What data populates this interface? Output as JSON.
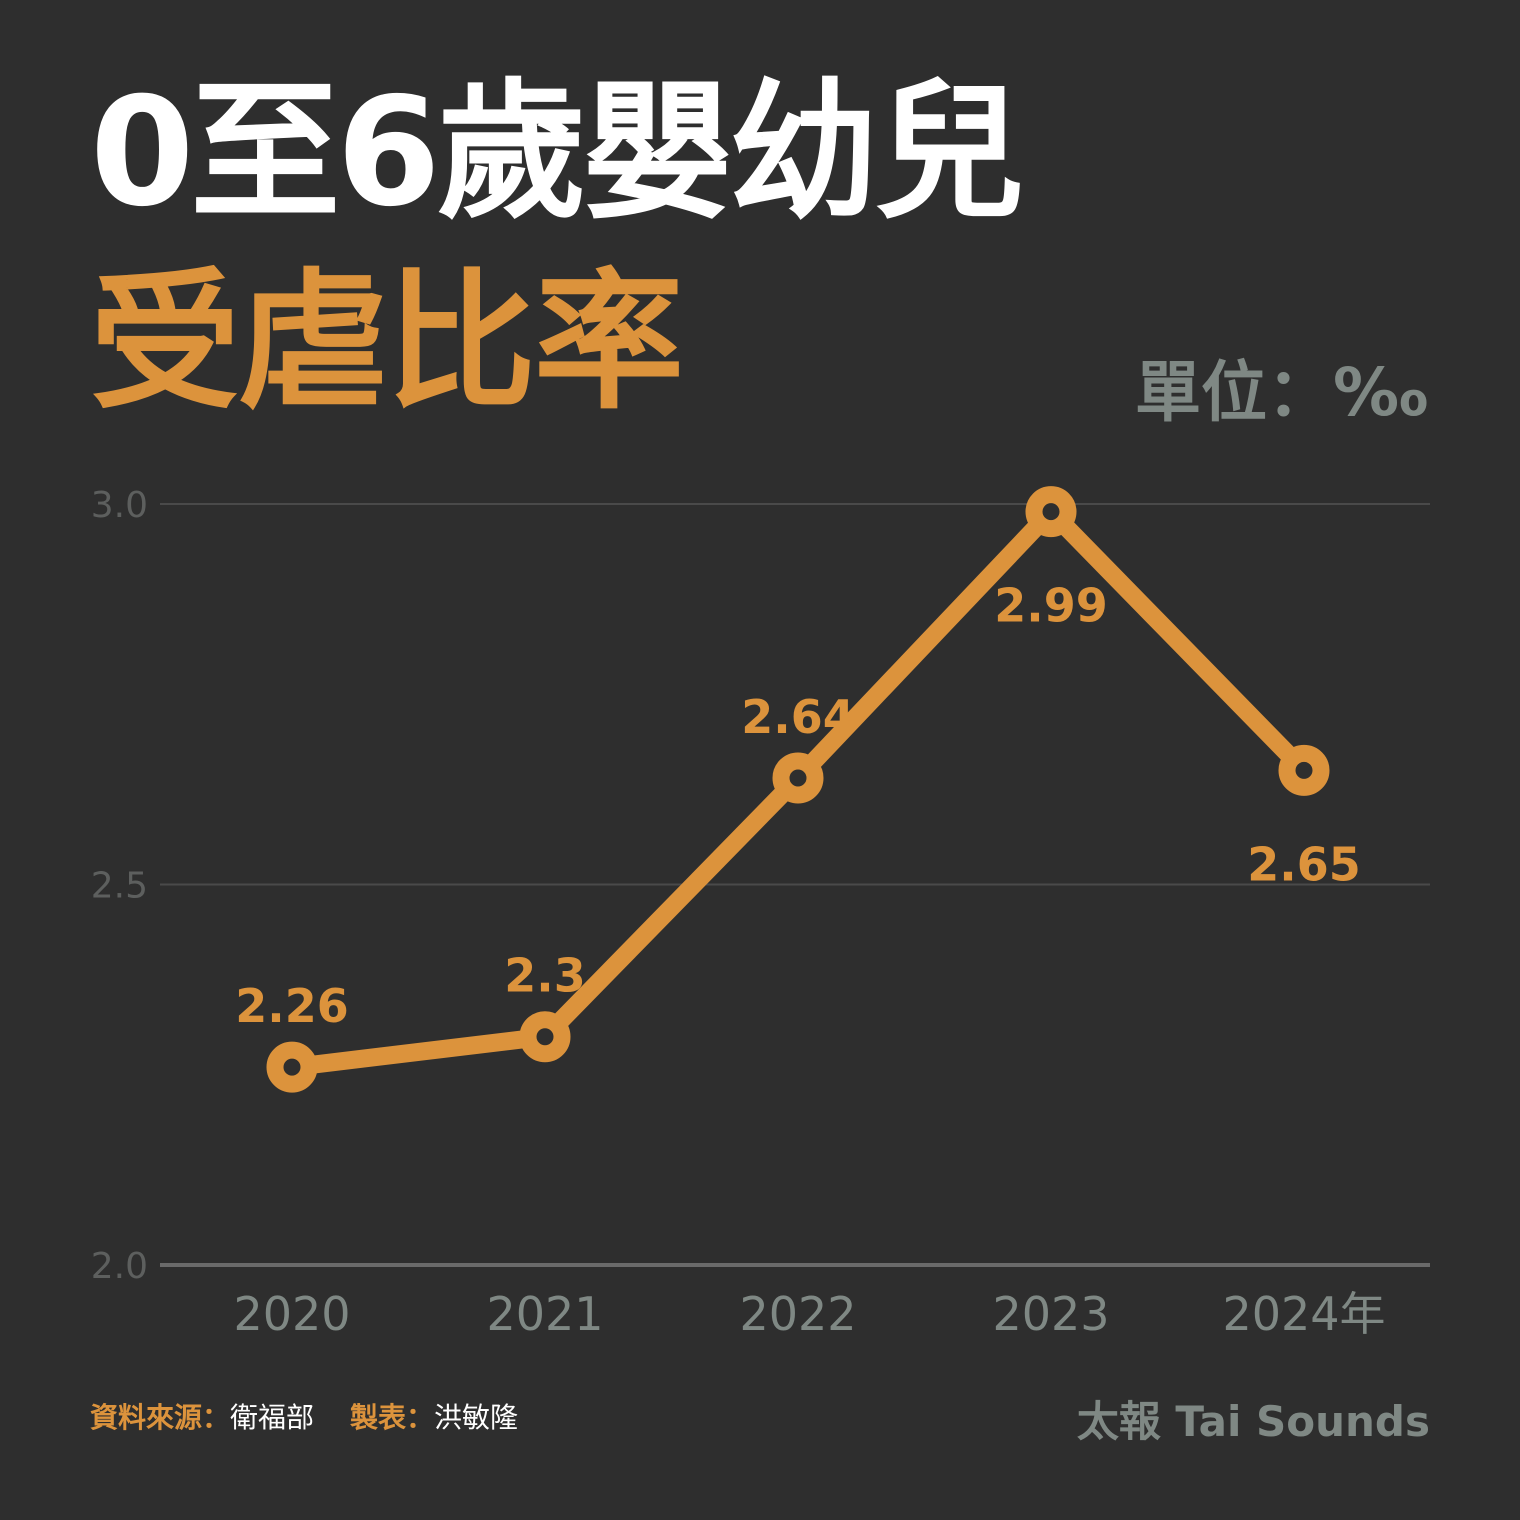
{
  "title_line1": "0至6歲嬰幼兒",
  "title_line2": "受虐比率",
  "unit_label": "單位：‰",
  "footer": {
    "source_label": "資料來源：",
    "source_value": "衛福部",
    "maker_label": "製表：",
    "maker_value": "洪敏隆",
    "brand": "太報 Tai Sounds"
  },
  "colors": {
    "background": "#2e2e2e",
    "accent": "#dc933c",
    "muted": "#7f8884",
    "grid": "#4a4a4a"
  },
  "chart_data": {
    "type": "line",
    "x": [
      "2020",
      "2021",
      "2022",
      "2023",
      "2024年"
    ],
    "series": [
      {
        "values": [
          2.26,
          2.3,
          2.64,
          2.99,
          2.65
        ]
      }
    ],
    "data_labels": [
      "2.26",
      "2.3",
      "2.64",
      "2.99",
      "2.65"
    ],
    "ylim": [
      2.0,
      3.0
    ],
    "yticks": [
      "2.0",
      "2.5",
      "3.0"
    ],
    "ytick_values": [
      2.0,
      2.5,
      3.0
    ],
    "grid": true,
    "legend": false
  }
}
